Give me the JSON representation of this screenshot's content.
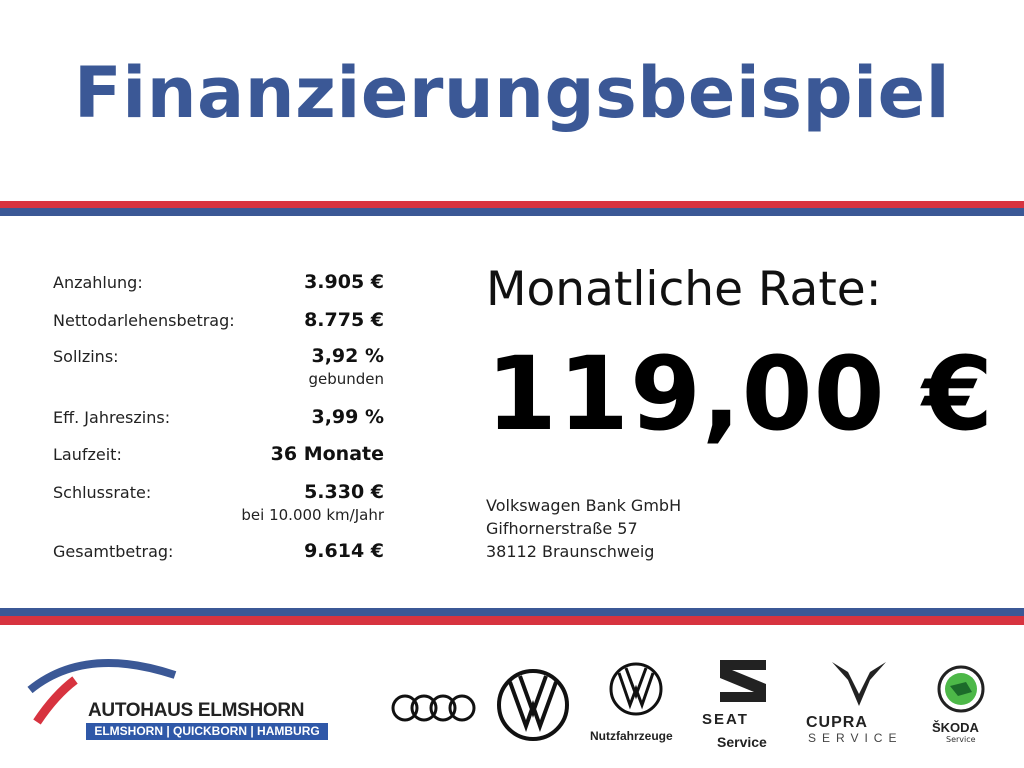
{
  "title": "Finanzierungsbeispiel",
  "colors": {
    "title": "#3b5896",
    "stripe_red": "#d7333f",
    "stripe_blue": "#3b5896"
  },
  "details": [
    {
      "label": "Anzahlung:",
      "value": "3.905 €"
    },
    {
      "label": "Nettodarlehensbetrag:",
      "value": "8.775 €"
    },
    {
      "label": "Sollzins:",
      "value": "3,92 %",
      "note": "gebunden"
    },
    {
      "label": "Eff. Jahreszins:",
      "value": "3,99 %"
    },
    {
      "label": "Laufzeit:",
      "value": "36 Monate"
    },
    {
      "label": "Schlussrate:",
      "value": "5.330 €",
      "note": "bei 10.000 km/Jahr"
    },
    {
      "label": "Gesamtbetrag:",
      "value": "9.614 €"
    }
  ],
  "monthly": {
    "label": "Monatliche Rate:",
    "value": "119,00 €"
  },
  "bank": {
    "name": "Volkswagen Bank GmbH",
    "street": "Gifhornerstraße 57",
    "city": "38112 Braunschweig"
  },
  "footer": {
    "dealer": {
      "name": "AUTOHAUS ELMSHORN",
      "locations": "ELMSHORN | QUICKBORN | HAMBURG"
    },
    "brands": [
      {
        "icon": "audi-rings-icon"
      },
      {
        "icon": "vw-logo-icon"
      },
      {
        "icon": "vw-commercial-logo-icon",
        "label": "Nutzfahrzeuge"
      },
      {
        "icon": "seat-logo-icon",
        "label": "SEAT",
        "sub": "Service"
      },
      {
        "icon": "cupra-logo-icon",
        "label": "CUPRA",
        "sub": "SERVICE"
      },
      {
        "icon": "skoda-logo-icon",
        "label": "ŠKODA",
        "sub": "Service"
      }
    ]
  }
}
